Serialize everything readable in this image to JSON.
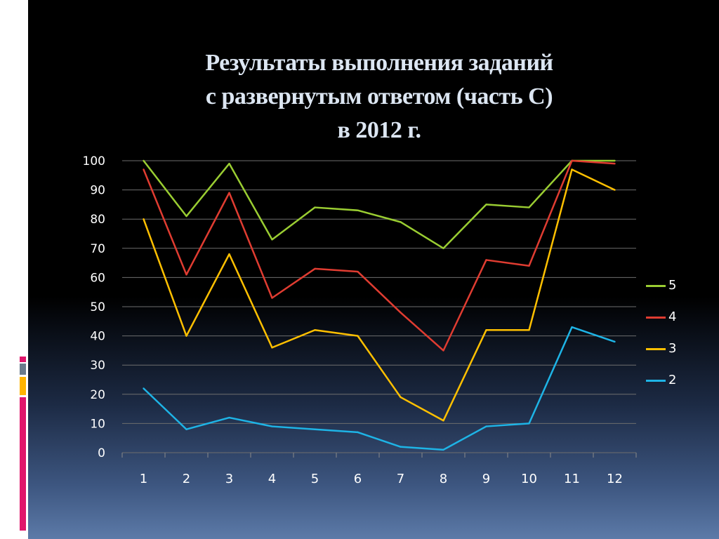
{
  "slide": {
    "title_lines": [
      "Результаты выполнения заданий",
      "с развернутым ответом (часть С)",
      "в 2012 г."
    ]
  },
  "chart_data": {
    "type": "line",
    "title": "Результаты выполнения заданий с развернутым ответом (часть С) в 2012 г.",
    "xlabel": "",
    "ylabel": "",
    "categories": [
      "1",
      "2",
      "3",
      "4",
      "5",
      "6",
      "7",
      "8",
      "9",
      "10",
      "11",
      "12"
    ],
    "ylim": [
      0,
      100
    ],
    "yticks": [
      "0",
      "10",
      "20",
      "30",
      "40",
      "50",
      "60",
      "70",
      "80",
      "90",
      "100"
    ],
    "grid": true,
    "legend_position": "right",
    "series": [
      {
        "name": "5",
        "color": "#9ACD32",
        "values": [
          100,
          81,
          99,
          73,
          84,
          83,
          79,
          70,
          85,
          84,
          100,
          100
        ]
      },
      {
        "name": "4",
        "color": "#E03C31",
        "values": [
          97,
          61,
          89,
          53,
          63,
          62,
          48,
          35,
          66,
          64,
          100,
          99
        ]
      },
      {
        "name": "3",
        "color": "#FFC000",
        "values": [
          80,
          40,
          68,
          36,
          42,
          40,
          19,
          11,
          42,
          42,
          97,
          90
        ]
      },
      {
        "name": "2",
        "color": "#1EB4E6",
        "values": [
          22,
          8,
          12,
          9,
          8,
          7,
          2,
          1,
          9,
          10,
          43,
          38
        ]
      }
    ]
  },
  "decor": {
    "stripe_colors": [
      "#E0156B",
      "#6B7B8C",
      "#FFB400",
      "#E0156B"
    ]
  }
}
